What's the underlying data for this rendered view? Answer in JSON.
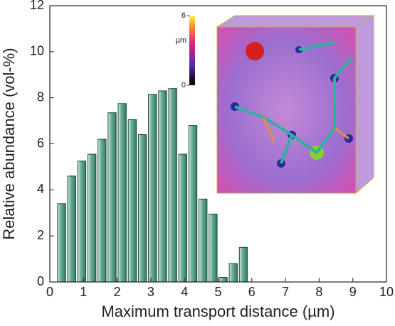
{
  "chart_data": {
    "type": "bar",
    "x": [
      0.35,
      0.65,
      0.95,
      1.25,
      1.55,
      1.85,
      2.15,
      2.45,
      2.75,
      3.05,
      3.35,
      3.65,
      3.95,
      4.25,
      4.55,
      4.85,
      5.15,
      5.45,
      5.75
    ],
    "values": [
      3.4,
      4.6,
      5.25,
      5.55,
      6.2,
      7.35,
      7.75,
      7.05,
      6.4,
      8.15,
      8.3,
      8.4,
      5.55,
      6.8,
      3.6,
      2.95,
      0.2,
      0.8,
      1.5
    ],
    "color": "#3f8f74",
    "xlim": [
      0,
      10
    ],
    "xticks": [
      0,
      1,
      2,
      3,
      4,
      5,
      6,
      7,
      8,
      9,
      10
    ],
    "ylim": [
      0,
      12
    ],
    "yticks": [
      0,
      2,
      4,
      6,
      8,
      10,
      12
    ],
    "xlabel": "Maximum transport distance (µm)",
    "ylabel": "Relative abundance (vol-%)",
    "inset": {
      "colorbar": {
        "label": "µm",
        "lim": [
          0,
          6
        ],
        "ticks": [
          0,
          6
        ]
      }
    }
  }
}
